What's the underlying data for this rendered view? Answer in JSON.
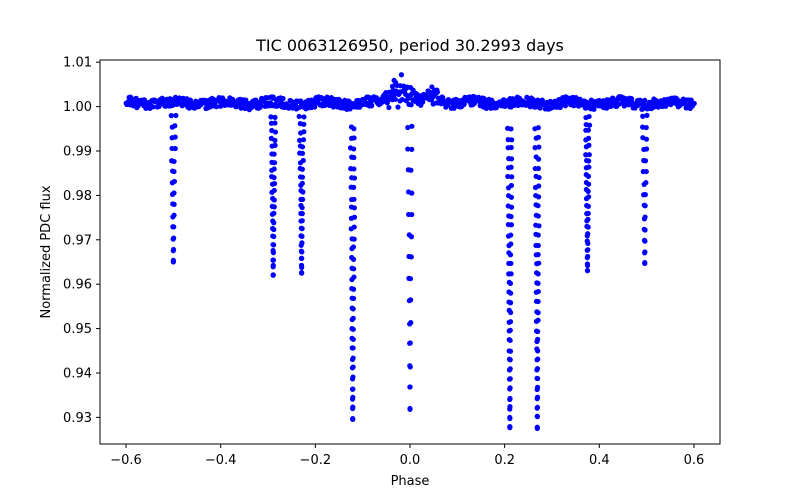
{
  "chart_data": {
    "type": "scatter",
    "title": "TIC 0063126950, period 30.2993 days",
    "xlabel": "Phase",
    "ylabel": "Normalized PDC flux",
    "xlim": [
      -0.655,
      0.655
    ],
    "ylim": [
      0.924,
      1.0105
    ],
    "xticks": [
      -0.6,
      -0.4,
      -0.2,
      0.0,
      0.2,
      0.4,
      0.6
    ],
    "xtick_labels": [
      "−0.6",
      "−0.4",
      "−0.2",
      "0.0",
      "0.2",
      "0.4",
      "0.6"
    ],
    "yticks": [
      0.93,
      0.94,
      0.95,
      0.96,
      0.97,
      0.98,
      0.99,
      1.0,
      1.01
    ],
    "ytick_labels": [
      "0.93",
      "0.94",
      "0.95",
      "0.96",
      "0.97",
      "0.98",
      "0.99",
      "1.00",
      "1.01"
    ],
    "grid": false,
    "marker_color": "#0000ff",
    "phase_range": [
      -0.6,
      0.6
    ],
    "baseline_flux": 1.0008,
    "baseline_scatter": 0.0011,
    "dips": [
      {
        "center": -0.5,
        "depth": 0.0355,
        "points": 14
      },
      {
        "center": -0.289,
        "depth": 0.0385,
        "points": 22
      },
      {
        "center": -0.229,
        "depth": 0.0385,
        "points": 22
      },
      {
        "center": -0.121,
        "depth": 0.071,
        "points": 30
      },
      {
        "center": 0.0,
        "depth": 0.069,
        "points": 14
      },
      {
        "center": 0.211,
        "depth": 0.073,
        "points": 32
      },
      {
        "center": 0.269,
        "depth": 0.073,
        "points": 32
      },
      {
        "center": 0.375,
        "depth": 0.038,
        "points": 22
      },
      {
        "center": 0.496,
        "depth": 0.036,
        "points": 14
      }
    ],
    "bumps": [
      {
        "center": -0.035,
        "height": 0.004
      },
      {
        "center": -0.01,
        "height": 0.005
      },
      {
        "center": 0.05,
        "height": 0.003
      }
    ]
  }
}
